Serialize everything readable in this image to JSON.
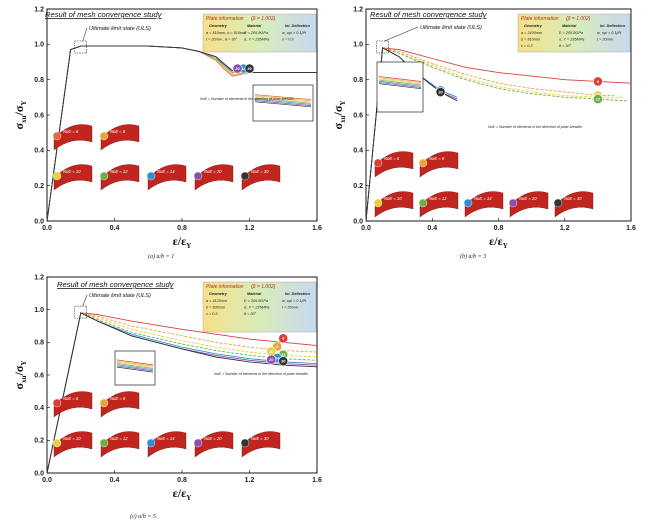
{
  "chart_data": [
    {
      "type": "line",
      "caption": "(a) a/b = 1",
      "title": "Result of mesh convergence study",
      "xlabel": "ε/ε",
      "xlabel_sub": "Y",
      "ylabel": "σ",
      "ylabel_sub": "xu",
      "ylabel_tail": "/σ",
      "ylabel_tail_sub": "Y",
      "xlim": [
        0.0,
        1.6
      ],
      "ylim": [
        0.0,
        1.2
      ],
      "xticks": [
        "0.0",
        "0.4",
        "0.8",
        "1.2",
        "1.6"
      ],
      "yticks": [
        "0.0",
        "0.2",
        "0.4",
        "0.6",
        "0.8",
        "1.0",
        "1.2"
      ],
      "uls_label": "Ultimate limit state (ULS)",
      "note": "NoE = Number of elements in the direction of plate breadth",
      "info_box": {
        "header": "Plate information",
        "beta": "(β = 1.002)",
        "cols": [
          "Geometry",
          "Material",
          "Ini. Deflection"
        ],
        "lines": [
          "a = 810mm, b = 810mm",
          "E = 205.8GPa",
          "w_opl = 0.1β²t",
          "t = 20mm , θ = 30°",
          "σ_Y = 235MPa",
          "ν = 0.3"
        ]
      },
      "series": [
        {
          "label": "6",
          "color": "#e8643a",
          "x": [
            0,
            0.14,
            0.2,
            0.3,
            0.6,
            0.8,
            0.9,
            1.0,
            1.05,
            1.1,
            1.2,
            1.6
          ],
          "y": [
            0,
            0.97,
            0.99,
            0.99,
            0.99,
            0.98,
            0.96,
            0.91,
            0.86,
            0.82,
            0.84,
            0.84
          ]
        },
        {
          "label": "8",
          "color": "#e8a63a",
          "x": [
            0,
            0.14,
            0.2,
            0.3,
            0.6,
            0.8,
            0.9,
            1.0,
            1.05,
            1.1,
            1.2,
            1.6
          ],
          "y": [
            0,
            0.97,
            0.99,
            0.99,
            0.99,
            0.98,
            0.96,
            0.92,
            0.87,
            0.83,
            0.84,
            0.84
          ]
        },
        {
          "label": "10",
          "color": "#e6d23a",
          "x": [
            0,
            0.14,
            0.2,
            0.3,
            0.6,
            0.8,
            0.9,
            1.0,
            1.05,
            1.1,
            1.2,
            1.6
          ],
          "y": [
            0,
            0.97,
            0.99,
            0.99,
            0.99,
            0.98,
            0.96,
            0.92,
            0.87,
            0.84,
            0.84,
            0.84
          ]
        },
        {
          "label": "12",
          "color": "#6db04a",
          "x": [
            0,
            0.14,
            0.2,
            0.3,
            0.6,
            0.8,
            0.9,
            1.0,
            1.05,
            1.1,
            1.2,
            1.6
          ],
          "y": [
            0,
            0.97,
            0.99,
            0.99,
            0.99,
            0.98,
            0.96,
            0.92,
            0.88,
            0.84,
            0.84,
            0.84
          ]
        },
        {
          "label": "14",
          "color": "#2f8fd0",
          "x": [
            0,
            0.14,
            0.2,
            0.3,
            0.6,
            0.8,
            0.9,
            1.0,
            1.05,
            1.1,
            1.2,
            1.6
          ],
          "y": [
            0,
            0.97,
            0.99,
            0.99,
            0.99,
            0.98,
            0.96,
            0.93,
            0.88,
            0.85,
            0.84,
            0.84
          ]
        },
        {
          "label": "20",
          "color": "#8a4fb0",
          "x": [
            0,
            0.14,
            0.2,
            0.3,
            0.6,
            0.8,
            0.9,
            1.0,
            1.05,
            1.1,
            1.2,
            1.6
          ],
          "y": [
            0,
            0.97,
            0.99,
            0.99,
            0.99,
            0.98,
            0.96,
            0.93,
            0.89,
            0.85,
            0.84,
            0.84
          ]
        },
        {
          "label": "30",
          "color": "#333333",
          "x": [
            0,
            0.14,
            0.2,
            0.3,
            0.6,
            0.8,
            0.9,
            1.0,
            1.05,
            1.1,
            1.2,
            1.6
          ],
          "y": [
            0,
            0.97,
            0.99,
            0.99,
            0.99,
            0.98,
            0.96,
            0.93,
            0.89,
            0.85,
            0.84,
            0.84
          ]
        }
      ],
      "mesh_labels": [
        "NoE = 6",
        "NoE = 8",
        "NoE = 10",
        "NoE = 12",
        "NoE = 14",
        "NoE = 20",
        "NoE = 30"
      ]
    },
    {
      "type": "line",
      "caption": "(b) a/b = 3",
      "title": "Result of mesh convergence study",
      "xlabel": "ε/ε",
      "xlabel_sub": "Y",
      "ylabel": "σ",
      "ylabel_sub": "xu",
      "ylabel_tail": "/σ",
      "ylabel_tail_sub": "Y",
      "xlim": [
        0.0,
        1.6
      ],
      "ylim": [
        0.0,
        1.2
      ],
      "xticks": [
        "0.0",
        "0.4",
        "0.8",
        "1.2",
        "1.6"
      ],
      "yticks": [
        "0.0",
        "0.2",
        "0.4",
        "0.6",
        "0.8",
        "1.0",
        "1.2"
      ],
      "uls_label": "Ultimate limit state (ULS)",
      "note": "NoE = Number of elements in the direction of plate breadth",
      "info_box": {
        "header": "Plate information",
        "beta": "(β = 1.002)",
        "cols": [
          "Geometry",
          "Material",
          "Ini. Deflection"
        ],
        "lines": [
          "a = 2430mm",
          "E = 205.8GPa",
          "w_opl = 0.1β²t",
          "b = 810mm",
          "σ_Y = 235MPa",
          "t = 20mm",
          "ν = 0.3",
          "θ = 30°"
        ]
      },
      "series": [
        {
          "label": "6",
          "color": "#d9403a",
          "x": [
            0,
            0.1,
            0.2,
            0.4,
            0.6,
            0.8,
            1.0,
            1.2,
            1.4,
            1.6
          ],
          "y": [
            0,
            0.98,
            0.97,
            0.92,
            0.87,
            0.84,
            0.82,
            0.8,
            0.79,
            0.78
          ]
        },
        {
          "label": "8",
          "color": "#e8a63a",
          "x": [
            0,
            0.1,
            0.2,
            0.4,
            0.6,
            0.8,
            1.0,
            1.2,
            1.4,
            1.5
          ],
          "y": [
            0,
            0.98,
            0.96,
            0.89,
            0.83,
            0.78,
            0.75,
            0.73,
            0.71,
            0.71
          ]
        },
        {
          "label": "10",
          "color": "#e6d23a",
          "x": [
            0,
            0.1,
            0.2,
            0.4,
            0.6,
            0.8,
            1.0,
            1.2,
            1.4,
            1.55
          ],
          "y": [
            0,
            0.98,
            0.95,
            0.88,
            0.81,
            0.76,
            0.73,
            0.71,
            0.7,
            0.7
          ]
        },
        {
          "label": "12",
          "color": "#6db04a",
          "x": [
            0,
            0.1,
            0.2,
            0.4,
            0.6,
            0.8,
            1.0,
            1.2,
            1.4,
            1.58
          ],
          "y": [
            0,
            0.98,
            0.95,
            0.87,
            0.8,
            0.75,
            0.72,
            0.7,
            0.69,
            0.68
          ]
        },
        {
          "label": "14",
          "color": "#2f8fd0",
          "x": [
            0,
            0.1,
            0.2,
            0.3,
            0.45,
            0.55
          ],
          "y": [
            0,
            0.98,
            0.93,
            0.84,
            0.74,
            0.7
          ]
        },
        {
          "label": "20",
          "color": "#8a4fb0",
          "x": [
            0,
            0.1,
            0.2,
            0.3,
            0.45,
            0.55
          ],
          "y": [
            0,
            0.98,
            0.93,
            0.84,
            0.73,
            0.69
          ]
        },
        {
          "label": "30",
          "color": "#333333",
          "x": [
            0,
            0.1,
            0.2,
            0.3,
            0.45,
            0.55
          ],
          "y": [
            0,
            0.98,
            0.93,
            0.84,
            0.73,
            0.68
          ]
        }
      ],
      "mesh_labels": [
        "NoE = 6",
        "NoE = 8",
        "NoE = 10",
        "NoE = 12",
        "NoE = 14",
        "NoE = 20",
        "NoE = 30"
      ]
    },
    {
      "type": "line",
      "caption": "(c) a/b = 5",
      "title": "Result of mesh convergence study",
      "xlabel": "ε/ε",
      "xlabel_sub": "Y",
      "ylabel": "σ",
      "ylabel_sub": "xu",
      "ylabel_tail": "/σ",
      "ylabel_tail_sub": "Y",
      "xlim": [
        0.0,
        1.6
      ],
      "ylim": [
        0.0,
        1.2
      ],
      "xticks": [
        "0.0",
        "0.4",
        "0.8",
        "1.2",
        "1.6"
      ],
      "yticks": [
        "0.0",
        "0.2",
        "0.4",
        "0.6",
        "0.8",
        "1.0",
        "1.2"
      ],
      "uls_label": "Ultimate limit state (ULS)",
      "note": "NoE = Number of elements in the direction of plate breadth",
      "info_box": {
        "header": "Plate information",
        "beta": "(β = 1.002)",
        "cols": [
          "Geometry",
          "Material",
          "Ini. Deflection"
        ],
        "lines": [
          "a = 4120mm",
          "E = 205.8GPa",
          "w_opl = 0.1β²t",
          "b = 830mm",
          "σ_Y = 235MPa",
          "t = 20mm",
          "ν = 0.3",
          "θ = 30°"
        ]
      },
      "series": [
        {
          "label": "6",
          "color": "#d9403a",
          "x": [
            0,
            0.2,
            0.3,
            0.5,
            0.8,
            1.0,
            1.2,
            1.4,
            1.6
          ],
          "y": [
            0,
            0.98,
            0.97,
            0.93,
            0.88,
            0.85,
            0.82,
            0.8,
            0.78
          ]
        },
        {
          "label": "8",
          "color": "#e8a63a",
          "x": [
            0,
            0.2,
            0.3,
            0.5,
            0.8,
            1.0,
            1.2,
            1.4,
            1.6
          ],
          "y": [
            0,
            0.98,
            0.96,
            0.9,
            0.84,
            0.8,
            0.77,
            0.75,
            0.74
          ]
        },
        {
          "label": "10",
          "color": "#e6d23a",
          "x": [
            0,
            0.2,
            0.3,
            0.5,
            0.8,
            1.0,
            1.2,
            1.4,
            1.6
          ],
          "y": [
            0,
            0.98,
            0.95,
            0.88,
            0.81,
            0.77,
            0.74,
            0.72,
            0.71
          ]
        },
        {
          "label": "12",
          "color": "#6db04a",
          "x": [
            0,
            0.2,
            0.3,
            0.5,
            0.8,
            1.0,
            1.2,
            1.4,
            1.6
          ],
          "y": [
            0,
            0.98,
            0.94,
            0.86,
            0.79,
            0.75,
            0.72,
            0.7,
            0.69
          ]
        },
        {
          "label": "14",
          "color": "#2f8fd0",
          "x": [
            0,
            0.2,
            0.3,
            0.5,
            0.8,
            1.0,
            1.2,
            1.4,
            1.6
          ],
          "y": [
            0,
            0.98,
            0.93,
            0.85,
            0.77,
            0.73,
            0.7,
            0.68,
            0.67
          ]
        },
        {
          "label": "20",
          "color": "#8a4fb0",
          "x": [
            0,
            0.2,
            0.3,
            0.5,
            0.8,
            1.0,
            1.2,
            1.4,
            1.6
          ],
          "y": [
            0,
            0.98,
            0.93,
            0.84,
            0.76,
            0.72,
            0.69,
            0.67,
            0.66
          ]
        },
        {
          "label": "30",
          "color": "#333333",
          "x": [
            0,
            0.2,
            0.3,
            0.5,
            0.8,
            1.0,
            1.2,
            1.4,
            1.6
          ],
          "y": [
            0,
            0.98,
            0.93,
            0.84,
            0.76,
            0.71,
            0.68,
            0.66,
            0.65
          ]
        }
      ],
      "mesh_labels": [
        "NoE = 6",
        "NoE = 8",
        "NoE = 10",
        "NoE = 12",
        "NoE = 14",
        "NoE = 20",
        "NoE = 30"
      ]
    }
  ]
}
